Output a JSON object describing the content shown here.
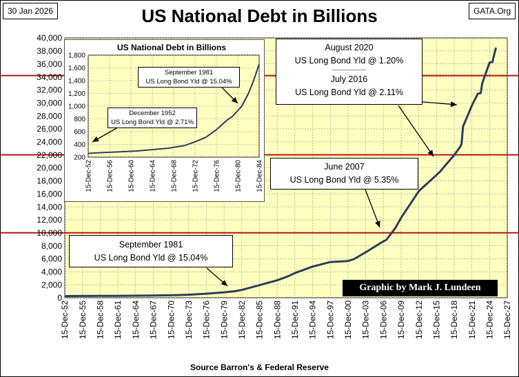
{
  "header": {
    "date": "30 Jan 2026",
    "site": "GATA.Org",
    "title": "US National Debt in Billions"
  },
  "source": "Source Barron's & Federal Reserve",
  "credit": "Graphic by Mark J. Lundeen",
  "callouts": {
    "sep1981": {
      "line1": "September 1981",
      "line2": "US Long Bond Yld @ 15.04%"
    },
    "jun2007": {
      "line1": "June 2007",
      "line2": "US Long Bond Yld @ 5.35%"
    },
    "aug2020": {
      "line1": "August 2020",
      "line2": "US Long Bond Yld @ 1.20%",
      "separator": "-------------------------------------------------",
      "line3": "July 2016",
      "line4": "US Long Bond Yld @ 2.11%"
    }
  },
  "chart_data": [
    {
      "type": "line",
      "title": "US National Debt in Billions",
      "ylim": [
        0,
        40000
      ],
      "yticks": [
        0,
        2000,
        4000,
        6000,
        8000,
        10000,
        12000,
        14000,
        16000,
        18000,
        20000,
        22000,
        24000,
        26000,
        28000,
        30000,
        32000,
        34000,
        36000,
        38000,
        40000
      ],
      "ytick_labels": [
        "0",
        "2,000",
        "4,000",
        "6,000",
        "8,000",
        "10,000",
        "12,000",
        "14,000",
        "16,000",
        "18,000",
        "20,000",
        "22,000",
        "24,000",
        "26,000",
        "28,000",
        "30,000",
        "32,000",
        "34,000",
        "36,000",
        "38,000",
        "40,000"
      ],
      "xlim": [
        "1952-12-15",
        "2027-12-15"
      ],
      "xticks": [
        "1952-12-15",
        "1955-12-15",
        "1958-12-15",
        "1961-12-15",
        "1964-12-15",
        "1967-12-15",
        "1970-12-15",
        "1973-12-15",
        "1976-12-15",
        "1979-12-15",
        "1982-12-15",
        "1985-12-15",
        "1988-12-15",
        "1991-12-15",
        "1994-12-15",
        "1997-12-15",
        "2000-12-15",
        "2003-12-15",
        "2006-12-15",
        "2009-12-15",
        "2012-12-15",
        "2015-12-15",
        "2018-12-15",
        "2021-12-15",
        "2024-12-15",
        "2027-12-15"
      ],
      "xtick_labels": [
        "15-Dec-52",
        "15-Dec-55",
        "15-Dec-58",
        "15-Dec-61",
        "15-Dec-64",
        "15-Dec-67",
        "15-Dec-70",
        "15-Dec-73",
        "15-Dec-76",
        "15-Dec-79",
        "15-Dec-82",
        "15-Dec-85",
        "15-Dec-88",
        "15-Dec-91",
        "15-Dec-94",
        "15-Dec-97",
        "15-Dec-00",
        "15-Dec-03",
        "15-Dec-06",
        "15-Dec-09",
        "15-Dec-12",
        "15-Dec-15",
        "15-Dec-18",
        "15-Dec-21",
        "15-Dec-24",
        "15-Dec-27"
      ],
      "grid": true,
      "reference_lines": [
        10000,
        22000,
        34200
      ],
      "series": [
        {
          "color": "#2a3e5c",
          "points": [
            [
              "1952-12-15",
              259
            ],
            [
              "1955-12-15",
              274
            ],
            [
              "1958-12-15",
              283
            ],
            [
              "1961-12-15",
              296
            ],
            [
              "1964-12-15",
              318
            ],
            [
              "1967-12-15",
              341
            ],
            [
              "1970-12-15",
              381
            ],
            [
              "1973-12-15",
              467
            ],
            [
              "1976-12-15",
              630
            ],
            [
              "1979-12-15",
              840
            ],
            [
              "1981-09-15",
              1000
            ],
            [
              "1982-12-15",
              1200
            ],
            [
              "1985-12-15",
              1945
            ],
            [
              "1988-12-15",
              2684
            ],
            [
              "1990-12-15",
              3364
            ],
            [
              "1991-12-15",
              3801
            ],
            [
              "1994-12-15",
              4800
            ],
            [
              "1997-12-15",
              5500
            ],
            [
              "2000-12-15",
              5660
            ],
            [
              "2001-12-15",
              5943
            ],
            [
              "2003-12-15",
              7000
            ],
            [
              "2006-12-15",
              8680
            ],
            [
              "2007-06-15",
              8900
            ],
            [
              "2008-12-15",
              10700
            ],
            [
              "2009-12-15",
              12300
            ],
            [
              "2012-12-15",
              16400
            ],
            [
              "2015-12-15",
              18900
            ],
            [
              "2016-07-15",
              19400
            ],
            [
              "2018-12-15",
              21970
            ],
            [
              "2019-12-15",
              23200
            ],
            [
              "2020-03-15",
              23700
            ],
            [
              "2020-06-15",
              26400
            ],
            [
              "2020-08-15",
              26700
            ],
            [
              "2021-12-15",
              29600
            ],
            [
              "2022-12-15",
              31400
            ],
            [
              "2023-06-15",
              31500
            ],
            [
              "2023-09-15",
              33000
            ],
            [
              "2024-12-15",
              36200
            ],
            [
              "2025-06-15",
              36300
            ],
            [
              "2025-08-15",
              37000
            ],
            [
              "2026-01-15",
              38500
            ]
          ]
        }
      ]
    },
    {
      "type": "line",
      "title": "US National Debt in Billions",
      "ylim": [
        200,
        1800
      ],
      "yticks": [
        200,
        400,
        600,
        800,
        1000,
        1200,
        1400,
        1600,
        1800
      ],
      "ytick_labels": [
        "200",
        "400",
        "600",
        "800",
        "1,000",
        "1,200",
        "1,400",
        "1,600",
        "1,800"
      ],
      "xlim": [
        "1952-12-15",
        "1984-12-15"
      ],
      "xticks": [
        "1952-12-15",
        "1956-12-15",
        "1960-12-15",
        "1964-12-15",
        "1968-12-15",
        "1972-12-15",
        "1976-12-15",
        "1980-12-15",
        "1984-12-15"
      ],
      "xtick_labels": [
        "15-Dec-52",
        "15-Dec-56",
        "15-Dec-60",
        "15-Dec-64",
        "15-Dec-68",
        "15-Dec-72",
        "15-Dec-76",
        "15-Dec-80",
        "15-Dec-84"
      ],
      "grid": true,
      "annotations": {
        "dec1952": {
          "line1": "December 1952",
          "line2": "US Long Bond Yld @ 2.71%"
        },
        "sep1981": {
          "line1": "September 1981",
          "line2": "US Long Bond Yld @ 15.04%"
        }
      },
      "series": [
        {
          "color": "#2a3e5c",
          "points": [
            [
              "1952-12-15",
              259
            ],
            [
              "1955-12-15",
              274
            ],
            [
              "1958-12-15",
              283
            ],
            [
              "1961-12-15",
              296
            ],
            [
              "1964-12-15",
              318
            ],
            [
              "1967-12-15",
              341
            ],
            [
              "1970-12-15",
              381
            ],
            [
              "1972-12-15",
              440
            ],
            [
              "1974-12-15",
              510
            ],
            [
              "1976-12-15",
              630
            ],
            [
              "1978-12-15",
              780
            ],
            [
              "1979-12-15",
              840
            ],
            [
              "1980-12-15",
              930
            ],
            [
              "1981-09-15",
              1000
            ],
            [
              "1982-12-15",
              1200
            ],
            [
              "1983-12-15",
              1410
            ],
            [
              "1984-12-15",
              1660
            ]
          ]
        }
      ]
    }
  ]
}
